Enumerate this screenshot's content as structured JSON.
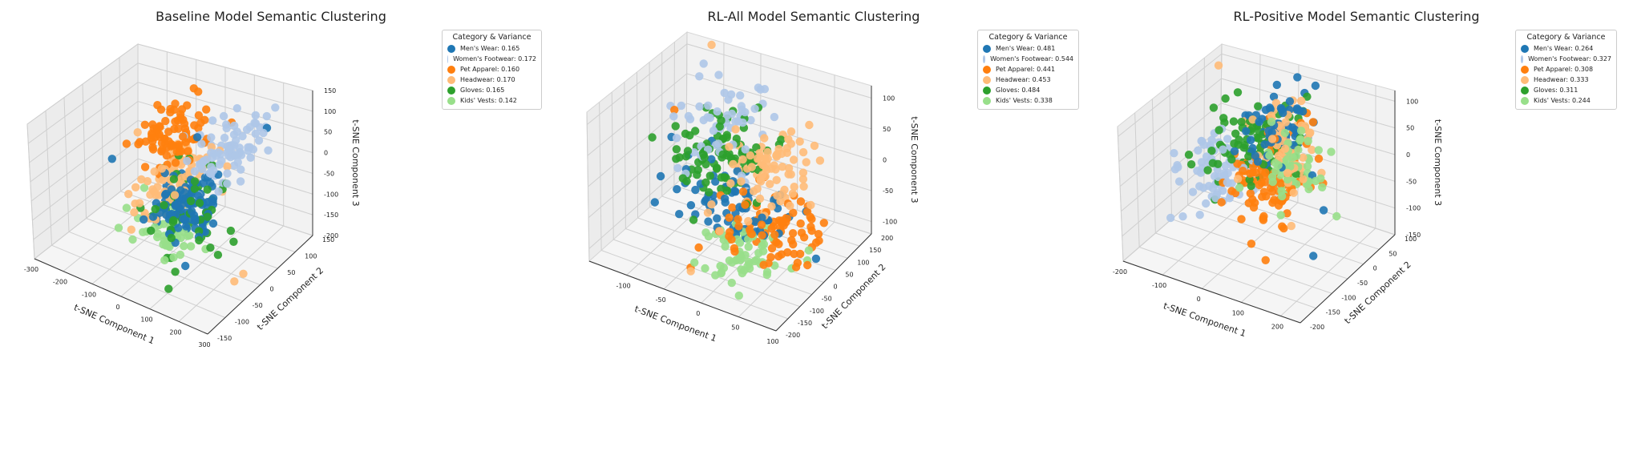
{
  "chart_data": [
    {
      "type": "scatter",
      "subtype": "3d",
      "title": "Baseline Model Semantic Clustering",
      "xlabel": "t-SNE Component 1",
      "ylabel": "t-SNE Component 2",
      "zlabel": "t-SNE Component 3",
      "xlim": [
        -300,
        300
      ],
      "ylim": [
        -150,
        150
      ],
      "zlim": [
        -200,
        150
      ],
      "xticks": [
        -300,
        -200,
        -100,
        0,
        100,
        200,
        300
      ],
      "yticks": [
        -150,
        -100,
        -50,
        0,
        50,
        100,
        150
      ],
      "zticks": [
        -200,
        -150,
        -100,
        -50,
        0,
        50,
        100,
        150
      ],
      "legend": {
        "title": "Category & Variance",
        "placement": "top-right outside",
        "items": [
          "Men's Wear: 0.165",
          "Women's Footwear: 0.172",
          "Pet Apparel: 0.160",
          "Headwear: 0.170",
          "Gloves: 0.165",
          "Kids' Vests: 0.142"
        ]
      },
      "series": [
        {
          "name": "Men's Wear",
          "color": "#1f77b4",
          "center": [
            60,
            -10,
            -60
          ],
          "spread": [
            45,
            35,
            35
          ],
          "count": 110,
          "outliers": [
            [
              -230,
              20,
              -40
            ],
            [
              180,
              120,
              60
            ],
            [
              40,
              40,
              70
            ]
          ]
        },
        {
          "name": "Women's Footwear",
          "color": "#aec7e8",
          "center": [
            110,
            70,
            30
          ],
          "spread": [
            45,
            40,
            30
          ],
          "count": 85,
          "outliers": []
        },
        {
          "name": "Pet Apparel",
          "color": "#ff7f0e",
          "center": [
            -40,
            40,
            50
          ],
          "spread": [
            45,
            40,
            30
          ],
          "count": 85,
          "outliers": []
        },
        {
          "name": "Headwear",
          "color": "#ffbb78",
          "center": [
            -20,
            20,
            -30
          ],
          "spread": [
            40,
            40,
            35
          ],
          "count": 85,
          "outliers": [
            [
              -190,
              60,
              10
            ],
            [
              260,
              -40,
              -170
            ],
            [
              230,
              10,
              -200
            ]
          ]
        },
        {
          "name": "Gloves",
          "color": "#2ca02c",
          "center": [
            60,
            0,
            -70
          ],
          "spread": [
            55,
            40,
            45
          ],
          "count": 60,
          "outliers": [
            [
              80,
              -80,
              -210
            ]
          ]
        },
        {
          "name": "Kids' Vests",
          "color": "#98df8a",
          "center": [
            0,
            -20,
            -130
          ],
          "spread": [
            50,
            35,
            25
          ],
          "count": 55,
          "outliers": []
        }
      ]
    },
    {
      "type": "scatter",
      "subtype": "3d",
      "title": "RL-All Model Semantic Clustering",
      "xlabel": "t-SNE Component 1",
      "ylabel": "t-SNE Component 2",
      "zlabel": "t-SNE Component 3",
      "xlim": [
        -150,
        100
      ],
      "ylim": [
        -200,
        200
      ],
      "zlim": [
        -120,
        120
      ],
      "xticks": [
        -100,
        -50,
        0,
        50,
        100
      ],
      "yticks": [
        -200,
        -150,
        -100,
        -50,
        0,
        50,
        100,
        150,
        200
      ],
      "zticks": [
        -100,
        -50,
        0,
        50,
        100
      ],
      "legend": {
        "title": "Category & Variance",
        "placement": "top-right outside",
        "items": [
          "Men's Wear: 0.481",
          "Women's Footwear: 0.544",
          "Pet Apparel: 0.441",
          "Headwear: 0.453",
          "Gloves: 0.484",
          "Kids' Vests: 0.338"
        ]
      },
      "series": [
        {
          "name": "Men's Wear",
          "color": "#1f77b4",
          "center": [
            -20,
            0,
            -40
          ],
          "spread": [
            40,
            60,
            25
          ],
          "count": 70,
          "outliers": []
        },
        {
          "name": "Women's Footwear",
          "color": "#aec7e8",
          "center": [
            -60,
            60,
            40
          ],
          "spread": [
            35,
            60,
            25
          ],
          "count": 60,
          "outliers": []
        },
        {
          "name": "Pet Apparel",
          "color": "#ff7f0e",
          "center": [
            40,
            -40,
            -40
          ],
          "spread": [
            30,
            55,
            25
          ],
          "count": 80,
          "outliers": [
            [
              -120,
              60,
              50
            ],
            [
              -40,
              -120,
              -110
            ]
          ]
        },
        {
          "name": "Headwear",
          "color": "#ffbb78",
          "center": [
            20,
            20,
            20
          ],
          "spread": [
            30,
            60,
            25
          ],
          "count": 85,
          "outliers": [
            [
              -110,
              180,
              120
            ],
            [
              -30,
              -150,
              -100
            ]
          ]
        },
        {
          "name": "Gloves",
          "color": "#2ca02c",
          "center": [
            -55,
            40,
            10
          ],
          "spread": [
            35,
            60,
            30
          ],
          "count": 95,
          "outliers": []
        },
        {
          "name": "Kids' Vests",
          "color": "#98df8a",
          "center": [
            20,
            -80,
            -80
          ],
          "spread": [
            30,
            40,
            20
          ],
          "count": 60,
          "outliers": []
        }
      ]
    },
    {
      "type": "scatter",
      "subtype": "3d",
      "title": "RL-Positive Model Semantic Clustering",
      "xlabel": "t-SNE Component 1",
      "ylabel": "t-SNE Component 2",
      "zlabel": "t-SNE Component 3",
      "xlim": [
        -200,
        250
      ],
      "ylim": [
        -200,
        100
      ],
      "zlim": [
        -150,
        120
      ],
      "xticks": [
        -200,
        -100,
        0,
        100,
        200
      ],
      "yticks": [
        -200,
        -150,
        -100,
        -50,
        0,
        50,
        100
      ],
      "zticks": [
        -150,
        -100,
        -50,
        0,
        50,
        100
      ],
      "legend": {
        "title": "Category & Variance",
        "placement": "top-right outside",
        "items": [
          "Men's Wear: 0.264",
          "Women's Footwear: 0.327",
          "Pet Apparel: 0.308",
          "Headwear: 0.333",
          "Gloves: 0.311",
          "Kids' Vests: 0.244"
        ]
      },
      "series": [
        {
          "name": "Men's Wear",
          "color": "#1f77b4",
          "center": [
            10,
            20,
            50
          ],
          "spread": [
            40,
            35,
            30
          ],
          "count": 65,
          "outliers": [
            [
              200,
              -60,
              -20
            ],
            [
              230,
              -130,
              -60
            ]
          ]
        },
        {
          "name": "Women's Footwear",
          "color": "#aec7e8",
          "center": [
            -90,
            -30,
            -30
          ],
          "spread": [
            45,
            40,
            35
          ],
          "count": 80,
          "outliers": []
        },
        {
          "name": "Pet Apparel",
          "color": "#ff7f0e",
          "center": [
            30,
            -20,
            -20
          ],
          "spread": [
            40,
            40,
            40
          ],
          "count": 95,
          "outliers": [
            [
              90,
              -110,
              -120
            ],
            [
              10,
              -20,
              -110
            ]
          ]
        },
        {
          "name": "Headwear",
          "color": "#ffbb78",
          "center": [
            40,
            10,
            20
          ],
          "spread": [
            40,
            35,
            35
          ],
          "count": 70,
          "outliers": [
            [
              -190,
              80,
              90
            ],
            [
              150,
              -100,
              -40
            ],
            [
              140,
              -50,
              20
            ]
          ]
        },
        {
          "name": "Gloves",
          "color": "#2ca02c",
          "center": [
            -30,
            0,
            10
          ],
          "spread": [
            45,
            40,
            40
          ],
          "count": 90,
          "outliers": []
        },
        {
          "name": "Kids' Vests",
          "color": "#98df8a",
          "center": [
            90,
            -30,
            10
          ],
          "spread": [
            35,
            35,
            40
          ],
          "count": 55,
          "outliers": []
        }
      ]
    }
  ]
}
